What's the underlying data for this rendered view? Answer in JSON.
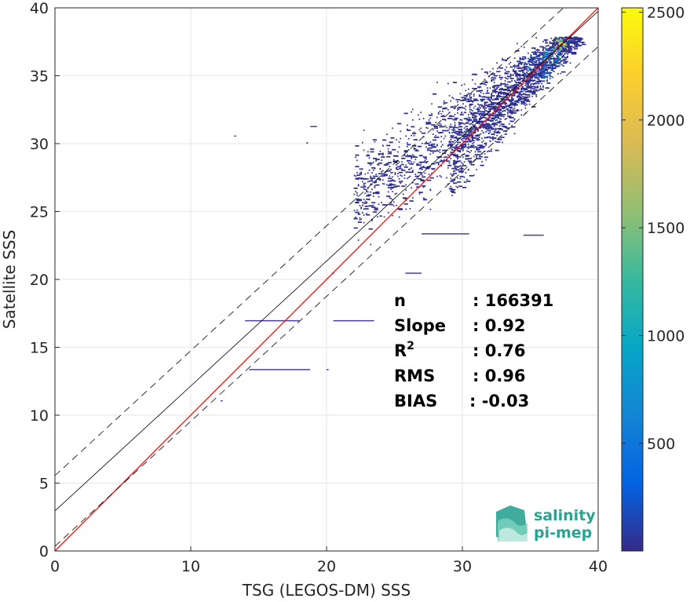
{
  "chart_data": {
    "type": "heatmap",
    "subtype": "2d-density-scatter",
    "xlabel": "TSG (LEGOS-DM) SSS",
    "ylabel": "Satellite SSS",
    "xlim": [
      0,
      40
    ],
    "ylim": [
      0,
      40
    ],
    "x_ticks": [
      "0",
      "10",
      "20",
      "30",
      "40"
    ],
    "y_ticks": [
      "0",
      "5",
      "10",
      "15",
      "20",
      "25",
      "30",
      "35",
      "40"
    ],
    "grid": true,
    "colorbar": {
      "range": [
        1,
        2520
      ],
      "ticks": [
        "500",
        "1000",
        "1500",
        "2000",
        "2500"
      ],
      "colormap": "parula"
    },
    "lines": [
      {
        "role": "identity",
        "slope": 1,
        "intercept": 0,
        "color": "#ff0000",
        "style": "solid"
      },
      {
        "role": "regression",
        "slope": 0.92,
        "intercept": 2.95,
        "color": "#000000",
        "style": "solid"
      },
      {
        "role": "upper-bound",
        "slope": 0.92,
        "intercept": 5.55,
        "color": "#000000",
        "style": "dashed"
      },
      {
        "role": "lower-bound",
        "slope": 0.92,
        "intercept": 0.35,
        "color": "#000000",
        "style": "dashed"
      }
    ],
    "density_regions": [
      {
        "x": [
          29,
          39
        ],
        "y_center_slope": 0.92,
        "y_center_intercept": 2.8,
        "spread": 2.2,
        "weight": "high"
      },
      {
        "x": [
          22,
          29
        ],
        "y_center_slope": 0.6,
        "y_center_intercept": 13,
        "spread": 2.5,
        "weight": "low"
      }
    ],
    "hotspots": [
      {
        "x": 37.2,
        "y": 37.2,
        "count": 2500
      },
      {
        "x": 36.5,
        "y": 36.4,
        "count": 1400
      },
      {
        "x": 35.5,
        "y": 35.6,
        "count": 700
      }
    ],
    "outliers": [
      {
        "x": 14.0,
        "x2": 18.0,
        "y": 16.9
      },
      {
        "x": 20.5,
        "x2": 23.5,
        "y": 16.9
      },
      {
        "x": 14.3,
        "x2": 18.8,
        "y": 13.3
      },
      {
        "x": 20.0,
        "y": 13.3
      },
      {
        "x": 12.2,
        "y": 11.0
      },
      {
        "x": 13.2,
        "y": 30.5
      },
      {
        "x": 18.5,
        "y": 30.0
      },
      {
        "x": 18.8,
        "x2": 19.3,
        "y": 31.2
      },
      {
        "x": 20.4,
        "y": 20.4
      },
      {
        "x": 25.8,
        "x2": 27.0,
        "y": 20.4
      },
      {
        "x": 34.5,
        "x2": 36.0,
        "y": 23.2
      },
      {
        "x": 27.0,
        "x2": 30.5,
        "y": 23.3
      }
    ],
    "stats": [
      {
        "label": "n",
        "value": ": 166391"
      },
      {
        "label": "Slope",
        "value": ": 0.92"
      },
      {
        "label": "R",
        "sup": "2",
        "value": ": 0.76"
      },
      {
        "label": "RMS",
        "value": ": 0.96"
      },
      {
        "label": "BIAS",
        "value": ": -0.03"
      }
    ]
  },
  "logo": {
    "line1": "salinity",
    "line2": "pi-mep"
  },
  "colors": {
    "identity_line": "#ff0000",
    "regression_line": "#000000",
    "logo_text": "#2aa392",
    "grid": "#e6e6e6"
  }
}
